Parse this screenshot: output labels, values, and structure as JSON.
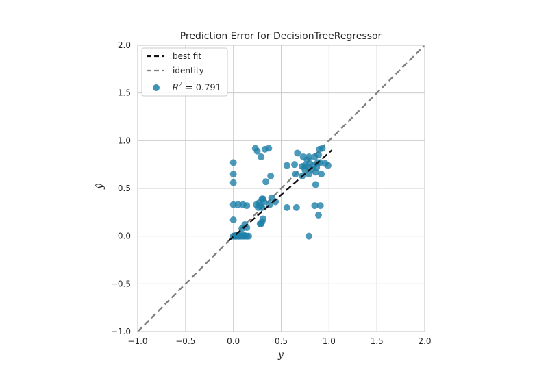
{
  "chart_data": {
    "type": "scatter",
    "title": "Prediction Error for DecisionTreeRegressor",
    "xlabel": "y",
    "ylabel": "ŷ",
    "xlim": [
      -1.0,
      2.0
    ],
    "ylim": [
      -1.0,
      2.0
    ],
    "xticks": [
      -1.0,
      -0.5,
      0.0,
      0.5,
      1.0,
      1.5,
      2.0
    ],
    "yticks": [
      -1.0,
      -0.5,
      0.0,
      0.5,
      1.0,
      1.5,
      2.0
    ],
    "xtick_labels": [
      "−1.0",
      "−0.5",
      "0.0",
      "0.5",
      "1.0",
      "1.5",
      "2.0"
    ],
    "ytick_labels": [
      "−1.0",
      "−0.5",
      "0.0",
      "0.5",
      "1.0",
      "1.5",
      "2.0"
    ],
    "grid": true,
    "legend_position": "top-left",
    "legend": [
      {
        "label": "best fit",
        "style": "dashed",
        "color": "#111111"
      },
      {
        "label": "identity",
        "style": "dashed",
        "color": "#808080"
      },
      {
        "label": "R² = 0.791",
        "style": "marker",
        "color": "#1f7fa8"
      }
    ],
    "r2_label": {
      "prefix": "R",
      "sup": "2",
      "value": " = 0.791"
    },
    "best_fit": {
      "x": [
        -0.05,
        1.03
      ],
      "y": [
        -0.05,
        0.9
      ]
    },
    "identity": {
      "x": [
        -1.0,
        2.0
      ],
      "y": [
        -1.0,
        2.0
      ]
    },
    "colors": {
      "points": "#1f7fa8",
      "best_fit": "#111111",
      "identity": "#808080",
      "grid": "#cccccc",
      "frame": "#cccccc"
    },
    "points": [
      [
        0.0,
        0.0
      ],
      [
        0.01,
        0.0
      ],
      [
        0.02,
        0.0
      ],
      [
        0.03,
        0.0
      ],
      [
        0.05,
        0.0
      ],
      [
        0.06,
        0.0
      ],
      [
        0.08,
        0.0
      ],
      [
        0.1,
        0.0
      ],
      [
        0.12,
        0.0
      ],
      [
        0.14,
        0.0
      ],
      [
        0.16,
        0.0
      ],
      [
        0.11,
        0.01
      ],
      [
        0.03,
        0.01
      ],
      [
        0.07,
        0.01
      ],
      [
        0.09,
        0.08
      ],
      [
        0.14,
        0.09
      ],
      [
        0.12,
        0.12
      ],
      [
        0.29,
        0.13
      ],
      [
        0.3,
        0.15
      ],
      [
        0.28,
        0.13
      ],
      [
        0.31,
        0.18
      ],
      [
        0.0,
        0.17
      ],
      [
        0.0,
        0.33
      ],
      [
        0.05,
        0.33
      ],
      [
        0.1,
        0.33
      ],
      [
        0.14,
        0.32
      ],
      [
        0.24,
        0.33
      ],
      [
        0.26,
        0.3
      ],
      [
        0.27,
        0.35
      ],
      [
        0.28,
        0.32
      ],
      [
        0.3,
        0.39
      ],
      [
        0.31,
        0.39
      ],
      [
        0.3,
        0.3
      ],
      [
        0.32,
        0.36
      ],
      [
        0.38,
        0.33
      ],
      [
        0.4,
        0.4
      ],
      [
        0.44,
        0.36
      ],
      [
        0.0,
        0.56
      ],
      [
        0.0,
        0.65
      ],
      [
        0.0,
        0.77
      ],
      [
        0.34,
        0.57
      ],
      [
        0.39,
        0.63
      ],
      [
        0.23,
        0.92
      ],
      [
        0.25,
        0.89
      ],
      [
        0.29,
        0.83
      ],
      [
        0.33,
        0.91
      ],
      [
        0.37,
        0.92
      ],
      [
        0.56,
        0.3
      ],
      [
        0.66,
        0.3
      ],
      [
        0.56,
        0.74
      ],
      [
        0.64,
        0.75
      ],
      [
        0.65,
        0.65
      ],
      [
        0.67,
        0.87
      ],
      [
        0.72,
        0.73
      ],
      [
        0.73,
        0.83
      ],
      [
        0.75,
        0.74
      ],
      [
        0.77,
        0.8
      ],
      [
        0.79,
        0.83
      ],
      [
        0.72,
        0.63
      ],
      [
        0.75,
        0.69
      ],
      [
        0.78,
        0.72
      ],
      [
        0.79,
        0.65
      ],
      [
        0.8,
        0.76
      ],
      [
        0.82,
        0.7
      ],
      [
        0.84,
        0.74
      ],
      [
        0.85,
        0.83
      ],
      [
        0.86,
        0.67
      ],
      [
        0.87,
        0.72
      ],
      [
        0.88,
        0.77
      ],
      [
        0.89,
        0.85
      ],
      [
        0.91,
        0.77
      ],
      [
        0.92,
        0.65
      ],
      [
        0.93,
        0.92
      ],
      [
        0.96,
        0.76
      ],
      [
        0.99,
        0.74
      ],
      [
        0.9,
        0.91
      ],
      [
        0.86,
        0.54
      ],
      [
        0.85,
        0.32
      ],
      [
        0.91,
        0.32
      ],
      [
        0.89,
        0.22
      ],
      [
        0.79,
        0.0
      ]
    ]
  }
}
